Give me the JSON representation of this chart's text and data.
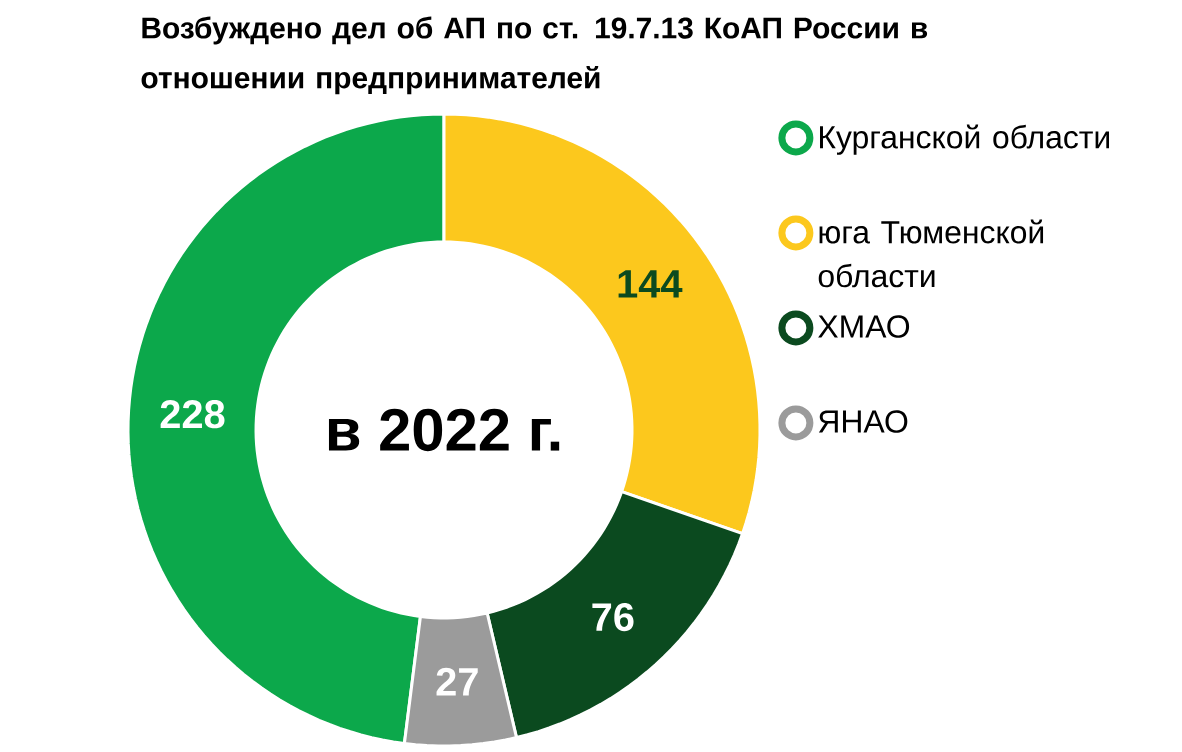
{
  "chart_data": {
    "type": "donut",
    "title": "Возбуждено дел об АП по ст. 19.7.13 КоАП России в отношении предпринимателей",
    "categories": [
      "Курганской области",
      "юга Тюменской области",
      "ХМАО",
      "ЯНАО"
    ],
    "values": [
      228,
      144,
      76,
      27
    ],
    "colors": [
      "#0ca84b",
      "#fcc81d",
      "#0b4a1f",
      "#9b9b9b"
    ],
    "data_labels": true,
    "legend": "right",
    "annotations": [
      "в 2022 г."
    ]
  }
}
